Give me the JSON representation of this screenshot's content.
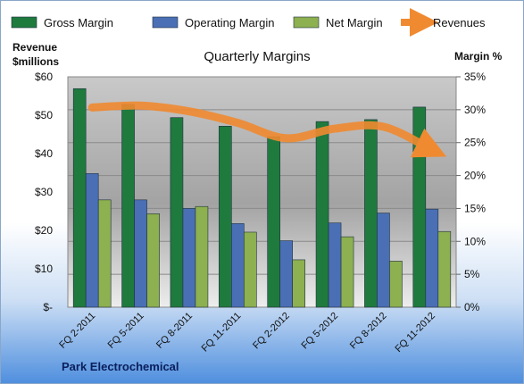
{
  "chart_data": {
    "type": "bar",
    "title": "Quarterly Margins",
    "categories": [
      "FQ 2-2011",
      "FQ 5-2011",
      "FQ 8-2011",
      "FQ 11-2011",
      "FQ 2-2012",
      "FQ 5-2012",
      "FQ 8-2012",
      "FQ 11-2012"
    ],
    "left_axis": {
      "title_lines": [
        "Revenue",
        "$millions"
      ],
      "ylim": [
        0,
        60
      ],
      "ticks": [
        "$-",
        "$10",
        "$20",
        "$30",
        "$40",
        "$50",
        "$60"
      ]
    },
    "right_axis": {
      "title": "Margin %",
      "ylim": [
        0,
        35
      ],
      "ticks": [
        "0%",
        "5%",
        "10%",
        "15%",
        "20%",
        "25%",
        "30%",
        "35%"
      ]
    },
    "series": [
      {
        "name": "Gross Margin",
        "type": "bar",
        "axis": "right",
        "color": "#1f7a3e",
        "values": [
          33.2,
          30.8,
          28.8,
          27.5,
          25.9,
          28.2,
          28.5,
          30.4
        ]
      },
      {
        "name": "Operating Margin",
        "type": "bar",
        "axis": "right",
        "color": "#4a6fb5",
        "values": [
          20.3,
          16.3,
          15.0,
          12.7,
          10.1,
          12.8,
          14.3,
          14.9
        ]
      },
      {
        "name": "Net Margin",
        "type": "bar",
        "axis": "right",
        "color": "#8db050",
        "values": [
          16.3,
          14.2,
          15.3,
          11.4,
          7.2,
          10.7,
          7.0,
          11.5
        ]
      },
      {
        "name": "Revenues",
        "type": "line",
        "axis": "left",
        "color": "#f08a30",
        "values": [
          52.0,
          52.5,
          51.0,
          48.0,
          44.0,
          46.5,
          47.0,
          41.0
        ]
      }
    ],
    "grid": true,
    "legend_position": "top",
    "footer": "Park Electrochemical"
  }
}
